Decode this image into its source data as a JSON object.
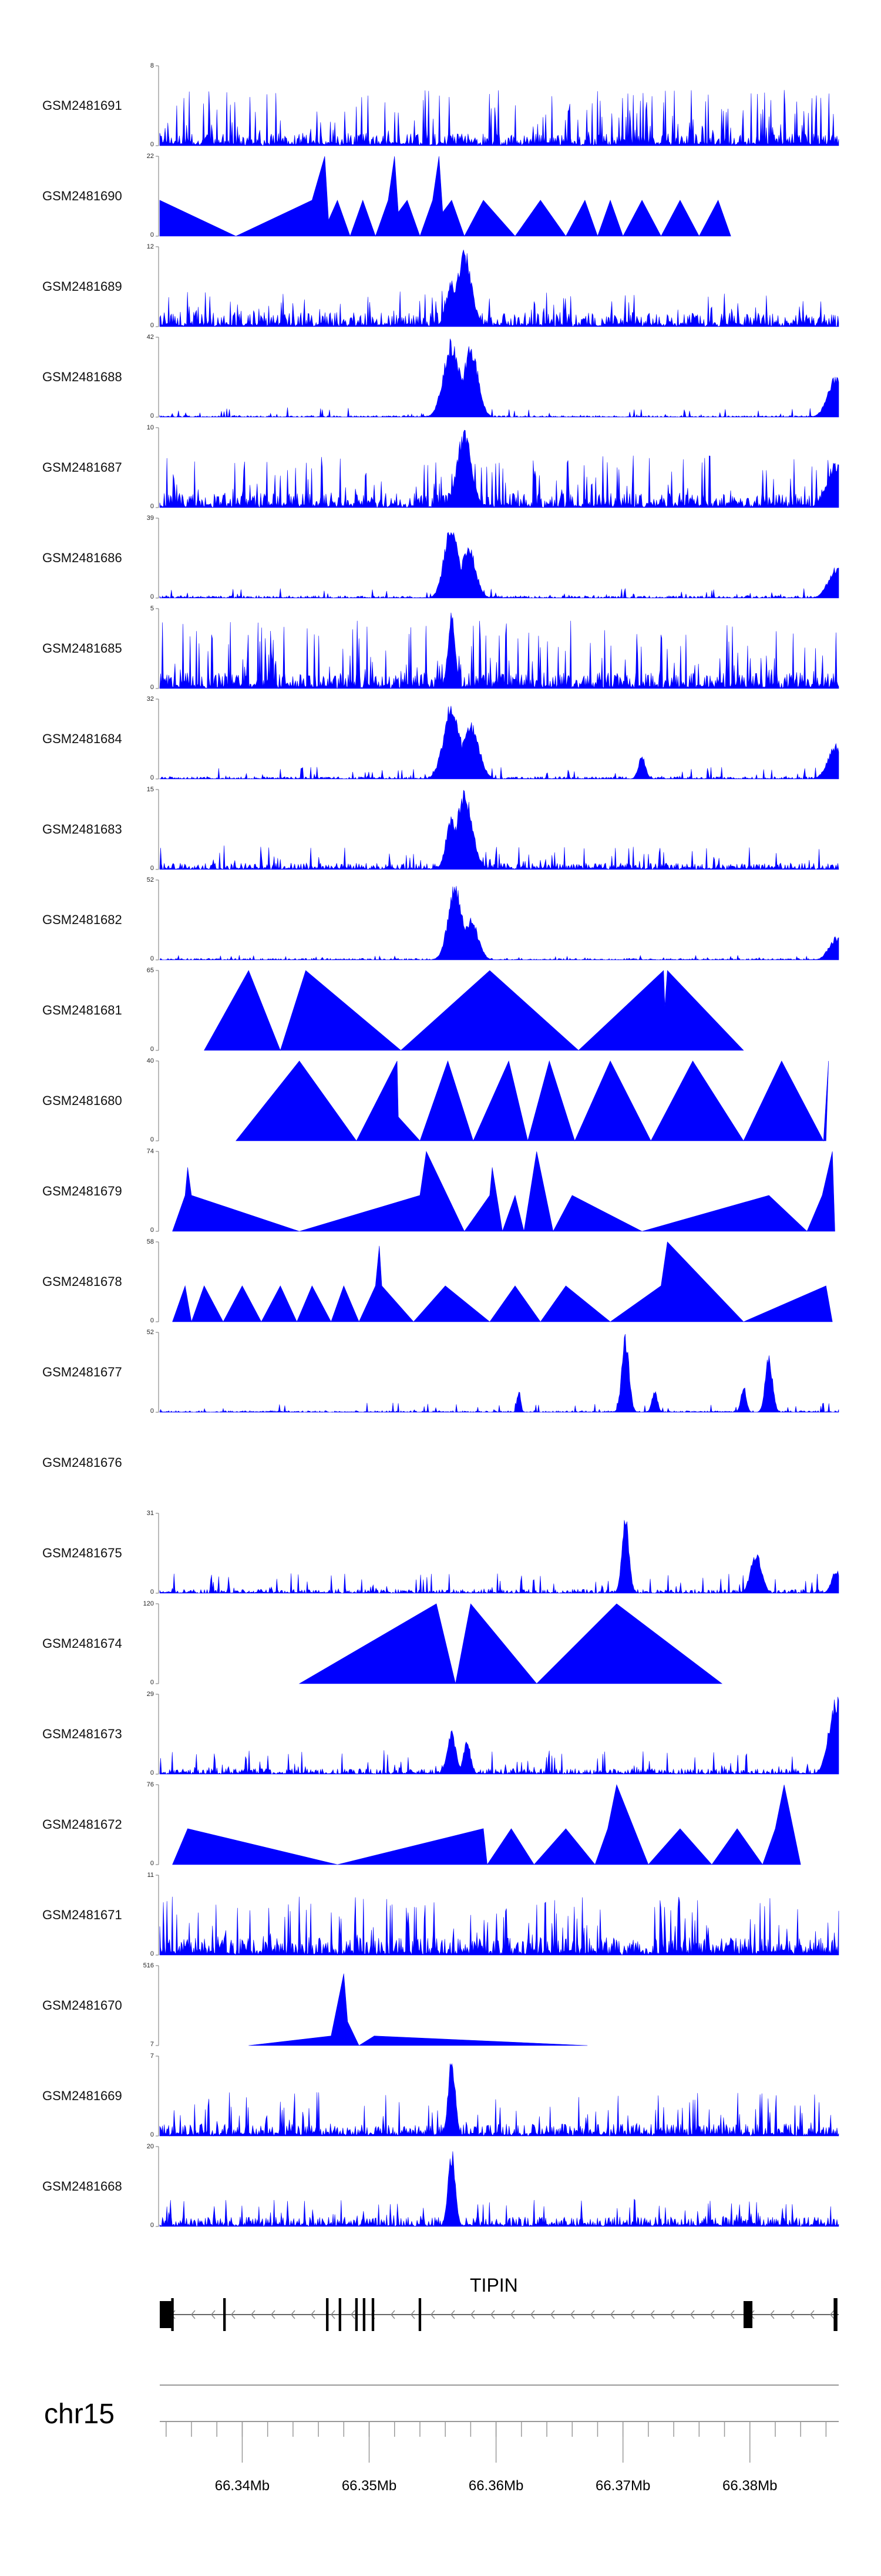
{
  "chart_data": {
    "type": "area",
    "chromosome": "chr15",
    "gene": "TIPIN",
    "x_range": [
      66.3335,
      66.387
    ],
    "x_ticks": [
      {
        "value": 66.34,
        "label": "66.34Mb"
      },
      {
        "value": 66.35,
        "label": "66.35Mb"
      },
      {
        "value": 66.36,
        "label": "66.36Mb"
      },
      {
        "value": 66.37,
        "label": "66.37Mb"
      },
      {
        "value": 66.38,
        "label": "66.38Mb"
      }
    ],
    "series": [
      {
        "name": "GSM2481691",
        "ymax": 8,
        "ymax_label": "8",
        "ymin_label": "0",
        "style": "noise",
        "base": 0.15,
        "spike": 0.7,
        "density": 0.22,
        "peaks": [],
        "seed": 11
      },
      {
        "name": "GSM2481690",
        "ymax": 22,
        "ymax_label": "22",
        "ymin_label": "0",
        "style": "tri",
        "seed": 21,
        "points": [
          [
            66.3335,
            0.45
          ],
          [
            66.3395,
            0
          ],
          [
            66.3455,
            0.45
          ],
          [
            66.3465,
            1.0
          ],
          [
            66.3468,
            0.2
          ],
          [
            66.3475,
            0.45
          ],
          [
            66.3485,
            0
          ],
          [
            66.3495,
            0.45
          ],
          [
            66.3505,
            0
          ],
          [
            66.3515,
            0.45
          ],
          [
            66.352,
            1.0
          ],
          [
            66.3523,
            0.3
          ],
          [
            66.353,
            0.45
          ],
          [
            66.354,
            0
          ],
          [
            66.355,
            0.45
          ],
          [
            66.3555,
            1.0
          ],
          [
            66.3558,
            0.3
          ],
          [
            66.3565,
            0.45
          ],
          [
            66.3575,
            0
          ],
          [
            66.359,
            0.45
          ],
          [
            66.3615,
            0
          ],
          [
            66.3635,
            0.45
          ],
          [
            66.3655,
            0
          ],
          [
            66.367,
            0.45
          ],
          [
            66.368,
            0
          ],
          [
            66.369,
            0.45
          ],
          [
            66.37,
            0
          ],
          [
            66.3715,
            0.45
          ],
          [
            66.373,
            0
          ],
          [
            66.3745,
            0.45
          ],
          [
            66.376,
            0
          ],
          [
            66.3775,
            0.45
          ],
          [
            66.3785,
            0
          ]
        ]
      },
      {
        "name": "GSM2481689",
        "ymax": 12,
        "ymax_label": "12",
        "ymin_label": "0",
        "style": "noise",
        "base": 0.18,
        "spike": 0.45,
        "density": 0.12,
        "peaks": [
          [
            66.3575,
            1.0,
            0.0008
          ],
          [
            66.3565,
            0.6,
            0.0006
          ]
        ],
        "seed": 31
      },
      {
        "name": "GSM2481688",
        "ymax": 42,
        "ymax_label": "42",
        "ymin_label": "0",
        "style": "noise",
        "base": 0.02,
        "spike": 0.12,
        "density": 0.08,
        "peaks": [
          [
            66.3565,
            1.0,
            0.0009
          ],
          [
            66.358,
            0.95,
            0.0008
          ],
          [
            66.3868,
            0.55,
            0.0009
          ]
        ],
        "seed": 41
      },
      {
        "name": "GSM2481687",
        "ymax": 10,
        "ymax_label": "10",
        "ymin_label": "0",
        "style": "noise",
        "base": 0.18,
        "spike": 0.65,
        "density": 0.18,
        "peaks": [
          [
            66.3575,
            1.0,
            0.0008
          ],
          [
            66.3868,
            0.6,
            0.001
          ]
        ],
        "seed": 51
      },
      {
        "name": "GSM2481686",
        "ymax": 39,
        "ymax_label": "39",
        "ymin_label": "0",
        "style": "noise",
        "base": 0.03,
        "spike": 0.12,
        "density": 0.08,
        "peaks": [
          [
            66.3565,
            1.0,
            0.0008
          ],
          [
            66.3578,
            0.7,
            0.0008
          ],
          [
            66.3868,
            0.4,
            0.0009
          ]
        ],
        "seed": 61
      },
      {
        "name": "GSM2481685",
        "ymax": 5,
        "ymax_label": "5",
        "ymin_label": "0",
        "style": "noise",
        "base": 0.2,
        "spike": 0.85,
        "density": 0.22,
        "peaks": [
          [
            66.3565,
            1.0,
            0.0004
          ]
        ],
        "seed": 71
      },
      {
        "name": "GSM2481684",
        "ymax": 32,
        "ymax_label": "32",
        "ymin_label": "0",
        "style": "noise",
        "base": 0.03,
        "spike": 0.15,
        "density": 0.08,
        "peaks": [
          [
            66.3565,
            1.0,
            0.0009
          ],
          [
            66.358,
            0.75,
            0.0009
          ],
          [
            66.3715,
            0.3,
            0.0004
          ],
          [
            66.3868,
            0.45,
            0.0009
          ]
        ],
        "seed": 81
      },
      {
        "name": "GSM2481683",
        "ymax": 15,
        "ymax_label": "15",
        "ymin_label": "0",
        "style": "noise",
        "base": 0.08,
        "spike": 0.3,
        "density": 0.1,
        "peaks": [
          [
            66.3575,
            1.0,
            0.0009
          ],
          [
            66.3565,
            0.7,
            0.0006
          ]
        ],
        "seed": 91
      },
      {
        "name": "GSM2481682",
        "ymax": 52,
        "ymax_label": "52",
        "ymin_label": "0",
        "style": "noise",
        "base": 0.02,
        "spike": 0.06,
        "density": 0.06,
        "peaks": [
          [
            66.3568,
            1.0,
            0.0008
          ],
          [
            66.358,
            0.55,
            0.0008
          ],
          [
            66.3868,
            0.3,
            0.0008
          ]
        ],
        "seed": 101
      },
      {
        "name": "GSM2481681",
        "ymax": 65,
        "ymax_label": "65",
        "ymin_label": "0",
        "style": "tri",
        "seed": 111,
        "points": [
          [
            66.337,
            0
          ],
          [
            66.3405,
            1.0
          ],
          [
            66.343,
            0
          ],
          [
            66.345,
            1.0
          ],
          [
            66.3525,
            0
          ],
          [
            66.3595,
            1.0
          ],
          [
            66.3665,
            0
          ],
          [
            66.3732,
            1.0
          ],
          [
            66.3733,
            0.55
          ],
          [
            66.3735,
            1.0
          ],
          [
            66.3795,
            0
          ]
        ]
      },
      {
        "name": "GSM2481680",
        "ymax": 40,
        "ymax_label": "40",
        "ymin_label": "0",
        "style": "tri",
        "seed": 121,
        "points": [
          [
            66.3395,
            0
          ],
          [
            66.3445,
            1.0
          ],
          [
            66.349,
            0
          ],
          [
            66.3522,
            1.0
          ],
          [
            66.3523,
            0.3
          ],
          [
            66.354,
            0
          ],
          [
            66.3562,
            1.0
          ],
          [
            66.3582,
            0
          ],
          [
            66.361,
            1.0
          ],
          [
            66.3625,
            0
          ],
          [
            66.3642,
            1.0
          ],
          [
            66.3662,
            0
          ],
          [
            66.369,
            1.0
          ],
          [
            66.3722,
            0
          ],
          [
            66.3755,
            1.0
          ],
          [
            66.3795,
            0
          ],
          [
            66.3825,
            1.0
          ],
          [
            66.3858,
            0
          ],
          [
            66.3862,
            1.0
          ],
          [
            66.386,
            0
          ]
        ]
      },
      {
        "name": "GSM2481679",
        "ymax": 74,
        "ymax_label": "74",
        "ymin_label": "0",
        "style": "tri",
        "seed": 131,
        "points": [
          [
            66.3345,
            0
          ],
          [
            66.3355,
            0.45
          ],
          [
            66.3357,
            0.8
          ],
          [
            66.336,
            0.45
          ],
          [
            66.3445,
            0
          ],
          [
            66.354,
            0.45
          ],
          [
            66.3545,
            1.0
          ],
          [
            66.3575,
            0
          ],
          [
            66.3595,
            0.45
          ],
          [
            66.3597,
            0.8
          ],
          [
            66.3605,
            0
          ],
          [
            66.3615,
            0.45
          ],
          [
            66.3622,
            0
          ],
          [
            66.3632,
            1.0
          ],
          [
            66.3645,
            0
          ],
          [
            66.366,
            0.45
          ],
          [
            66.3715,
            0
          ],
          [
            66.3815,
            0.45
          ],
          [
            66.3845,
            0
          ],
          [
            66.3857,
            0.45
          ],
          [
            66.3865,
            1.0
          ],
          [
            66.3867,
            0
          ]
        ]
      },
      {
        "name": "GSM2481678",
        "ymax": 58,
        "ymax_label": "58",
        "ymin_label": "0",
        "style": "tri",
        "seed": 141,
        "points": [
          [
            66.3345,
            0
          ],
          [
            66.3355,
            0.45
          ],
          [
            66.336,
            0
          ],
          [
            66.337,
            0.45
          ],
          [
            66.3385,
            0
          ],
          [
            66.34,
            0.45
          ],
          [
            66.3415,
            0
          ],
          [
            66.343,
            0.45
          ],
          [
            66.3443,
            0
          ],
          [
            66.3455,
            0.45
          ],
          [
            66.347,
            0
          ],
          [
            66.348,
            0.45
          ],
          [
            66.3492,
            0
          ],
          [
            66.3505,
            0.45
          ],
          [
            66.3508,
            0.95
          ],
          [
            66.351,
            0.45
          ],
          [
            66.3535,
            0
          ],
          [
            66.356,
            0.45
          ],
          [
            66.3595,
            0
          ],
          [
            66.3615,
            0.45
          ],
          [
            66.3635,
            0
          ],
          [
            66.3655,
            0.45
          ],
          [
            66.369,
            0
          ],
          [
            66.373,
            0.45
          ],
          [
            66.3735,
            1.0
          ],
          [
            66.3795,
            0
          ],
          [
            66.386,
            0.45
          ],
          [
            66.3865,
            0
          ]
        ]
      },
      {
        "name": "GSM2481677",
        "ymax": 52,
        "ymax_label": "52",
        "ymin_label": "0",
        "style": "noise",
        "base": 0.02,
        "spike": 0.12,
        "density": 0.06,
        "peaks": [
          [
            66.3618,
            0.3,
            0.0002
          ],
          [
            66.3702,
            1.0,
            0.0004
          ],
          [
            66.3725,
            0.3,
            0.0003
          ],
          [
            66.3795,
            0.35,
            0.0003
          ],
          [
            66.3815,
            0.75,
            0.0004
          ]
        ],
        "seed": 151
      },
      {
        "name": "GSM2481676",
        "ymax": 0,
        "ymax_label": "",
        "ymin_label": "",
        "style": "empty",
        "seed": 161
      },
      {
        "name": "GSM2481675",
        "ymax": 31,
        "ymax_label": "31",
        "ymin_label": "0",
        "style": "noise",
        "base": 0.05,
        "spike": 0.25,
        "density": 0.1,
        "peaks": [
          [
            66.3702,
            1.0,
            0.0004
          ],
          [
            66.3805,
            0.55,
            0.0006
          ],
          [
            66.3868,
            0.3,
            0.0005
          ]
        ],
        "seed": 171
      },
      {
        "name": "GSM2481674",
        "ymax": 120,
        "ymax_label": "120",
        "ymin_label": "0",
        "style": "tri",
        "seed": 181,
        "points": [
          [
            66.3445,
            0
          ],
          [
            66.3553,
            1.0
          ],
          [
            66.3568,
            0
          ],
          [
            66.358,
            1.0
          ],
          [
            66.3632,
            0
          ],
          [
            66.3695,
            1.0
          ],
          [
            66.3778,
            0
          ]
        ]
      },
      {
        "name": "GSM2481673",
        "ymax": 29,
        "ymax_label": "29",
        "ymin_label": "0",
        "style": "noise",
        "base": 0.07,
        "spike": 0.3,
        "density": 0.1,
        "peaks": [
          [
            66.3565,
            0.55,
            0.0005
          ],
          [
            66.3577,
            0.45,
            0.0004
          ],
          [
            66.3868,
            1.0,
            0.0008
          ]
        ],
        "seed": 191
      },
      {
        "name": "GSM2481672",
        "ymax": 76,
        "ymax_label": "76",
        "ymin_label": "0",
        "style": "tri",
        "seed": 201,
        "points": [
          [
            66.3345,
            0
          ],
          [
            66.3357,
            0.45
          ],
          [
            66.3475,
            0
          ],
          [
            66.359,
            0.45
          ],
          [
            66.3593,
            0
          ],
          [
            66.3612,
            0.45
          ],
          [
            66.363,
            0
          ],
          [
            66.3655,
            0.45
          ],
          [
            66.3678,
            0
          ],
          [
            66.3688,
            0.45
          ],
          [
            66.3695,
            1.0
          ],
          [
            66.372,
            0
          ],
          [
            66.3745,
            0.45
          ],
          [
            66.377,
            0
          ],
          [
            66.379,
            0.45
          ],
          [
            66.381,
            0
          ],
          [
            66.382,
            0.45
          ],
          [
            66.3827,
            1.0
          ],
          [
            66.384,
            0
          ]
        ]
      },
      {
        "name": "GSM2481671",
        "ymax": 11,
        "ymax_label": "11",
        "ymin_label": "0",
        "style": "noise",
        "base": 0.22,
        "spike": 0.75,
        "density": 0.2,
        "peaks": [],
        "seed": 211
      },
      {
        "name": "GSM2481670",
        "ymax": 516,
        "ymax_label": "516",
        "ymin_label": "7",
        "style": "tri",
        "seed": 221,
        "points": [
          [
            66.3405,
            0
          ],
          [
            66.347,
            0.12
          ],
          [
            66.348,
            0.9
          ],
          [
            66.3483,
            0.3
          ],
          [
            66.3492,
            0
          ],
          [
            66.3504,
            0.12
          ],
          [
            66.3672,
            0
          ]
        ]
      },
      {
        "name": "GSM2481669",
        "ymax": 7,
        "ymax_label": "7",
        "ymin_label": "0",
        "style": "noise",
        "base": 0.15,
        "spike": 0.55,
        "density": 0.16,
        "peaks": [
          [
            66.3565,
            1.0,
            0.0004
          ]
        ],
        "seed": 231
      },
      {
        "name": "GSM2481668",
        "ymax": 20,
        "ymax_label": "20",
        "ymin_label": "0",
        "style": "noise",
        "base": 0.12,
        "spike": 0.35,
        "density": 0.12,
        "peaks": [
          [
            66.3565,
            1.0,
            0.0004
          ]
        ],
        "seed": 241
      }
    ],
    "gene_model": {
      "name": "TIPIN",
      "strand": "-",
      "start": 66.3335,
      "end": 66.387,
      "exons": [
        {
          "start": 66.3335,
          "end": 66.3344,
          "type": "utr"
        },
        {
          "start": 66.3344,
          "end": 66.3346,
          "type": "cds"
        },
        {
          "start": 66.3385,
          "end": 66.3387,
          "type": "cds"
        },
        {
          "start": 66.3466,
          "end": 66.3468,
          "type": "cds"
        },
        {
          "start": 66.3476,
          "end": 66.3478,
          "type": "cds"
        },
        {
          "start": 66.3489,
          "end": 66.3491,
          "type": "cds"
        },
        {
          "start": 66.3495,
          "end": 66.3497,
          "type": "cds"
        },
        {
          "start": 66.3502,
          "end": 66.3504,
          "type": "cds"
        },
        {
          "start": 66.3539,
          "end": 66.3541,
          "type": "cds"
        },
        {
          "start": 66.3795,
          "end": 66.3802,
          "type": "utr"
        },
        {
          "start": 66.3866,
          "end": 66.3869,
          "type": "cds"
        }
      ]
    }
  }
}
